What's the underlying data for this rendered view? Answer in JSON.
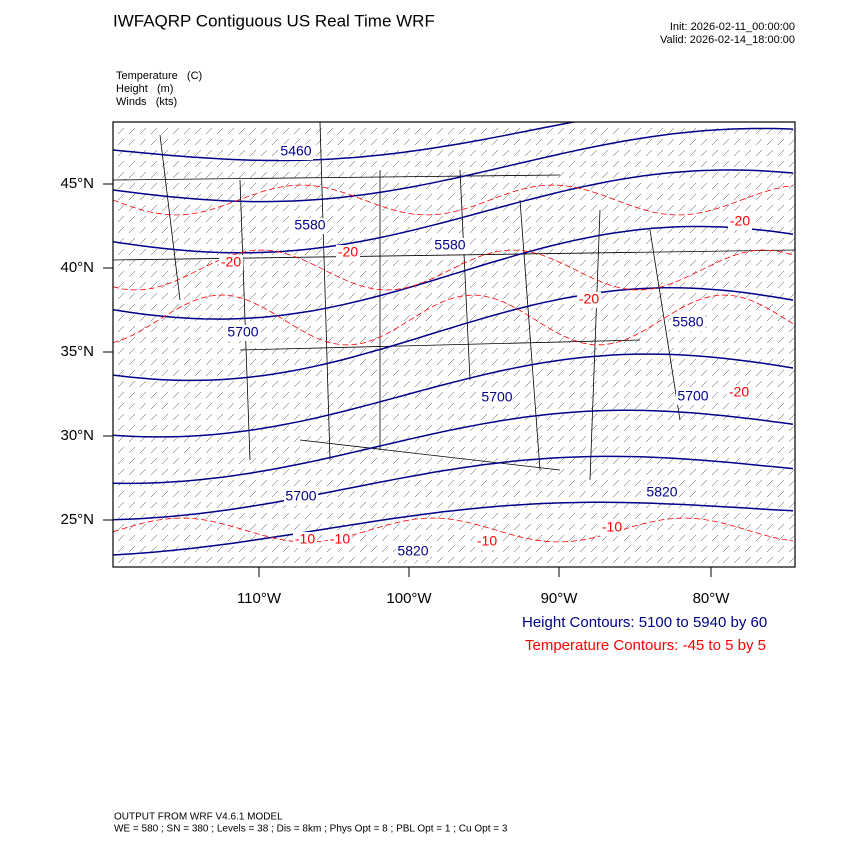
{
  "header": {
    "title": "IWFAQRP Contiguous US Real Time WRF",
    "init": "Init: 2026-02-11_00:00:00",
    "valid": "Valid: 2026-02-14_18:00:00"
  },
  "fields": [
    "Temperature   (C)",
    "Height   (m)",
    "Winds   (kts)"
  ],
  "axes": {
    "lat_labels": [
      "45°N",
      "40°N",
      "35°N",
      "30°N",
      "25°N"
    ],
    "lon_labels": [
      "110°W",
      "100°W",
      "90°W",
      "80°W"
    ]
  },
  "height_labels": [
    "5460",
    "5580",
    "5580",
    "5700",
    "5700",
    "5700",
    "5700",
    "5820",
    "5820",
    "5580"
  ],
  "temperature_labels": [
    "-20",
    "-20",
    "-20",
    "-20",
    "-20",
    "-10",
    "-10",
    "-10",
    "-10"
  ],
  "contour_info": {
    "height": "Height Contours: 5100 to 5940 by 60",
    "temperature": "Temperature Contours: -45 to 5 by 5"
  },
  "footer": [
    "OUTPUT FROM WRF V4.6.1 MODEL",
    "WE = 580 ; SN = 380 ; Levels = 38 ; Dis = 8km ; Phys Opt = 8 ; PBL Opt = 1 ; Cu Opt = 3"
  ]
}
